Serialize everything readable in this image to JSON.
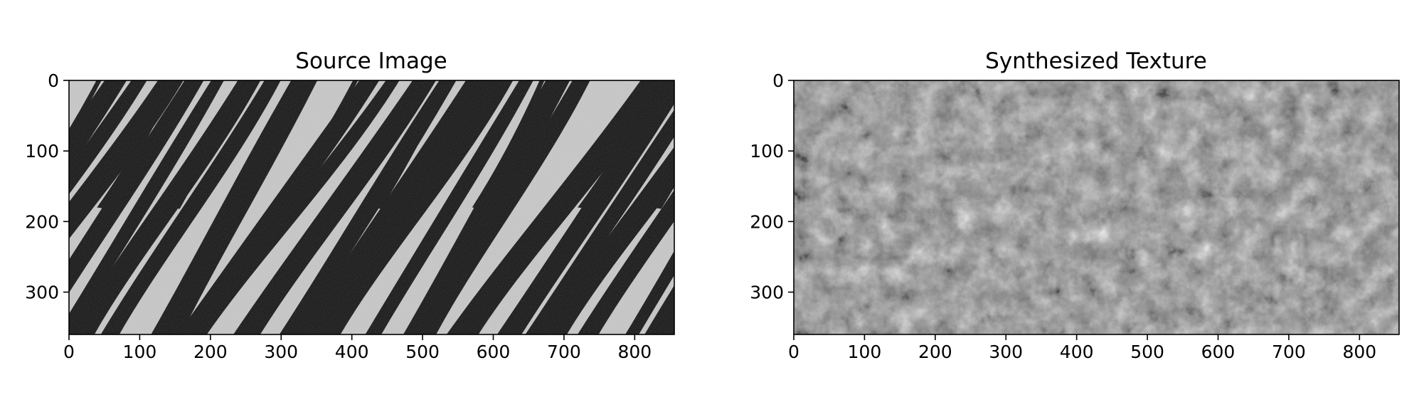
{
  "figure": {
    "panels": [
      {
        "title": "Source Image",
        "image": "zebra-stripes-grayscale",
        "x_ticks": [
          "0",
          "100",
          "200",
          "300",
          "400",
          "500",
          "600",
          "700",
          "800"
        ],
        "y_ticks": [
          "0",
          "100",
          "200",
          "300"
        ],
        "x_range": [
          0,
          856
        ],
        "y_range": [
          0,
          360
        ]
      },
      {
        "title": "Synthesized Texture",
        "image": "noise-texture-grayscale",
        "x_ticks": [
          "0",
          "100",
          "200",
          "300",
          "400",
          "500",
          "600",
          "700",
          "800"
        ],
        "y_ticks": [
          "0",
          "100",
          "200",
          "300"
        ],
        "x_range": [
          0,
          856
        ],
        "y_range": [
          0,
          360
        ]
      }
    ],
    "colors": {
      "stripe_dark": "#111111",
      "stripe_light": "#c8c8c8",
      "axis": "#000000"
    }
  }
}
